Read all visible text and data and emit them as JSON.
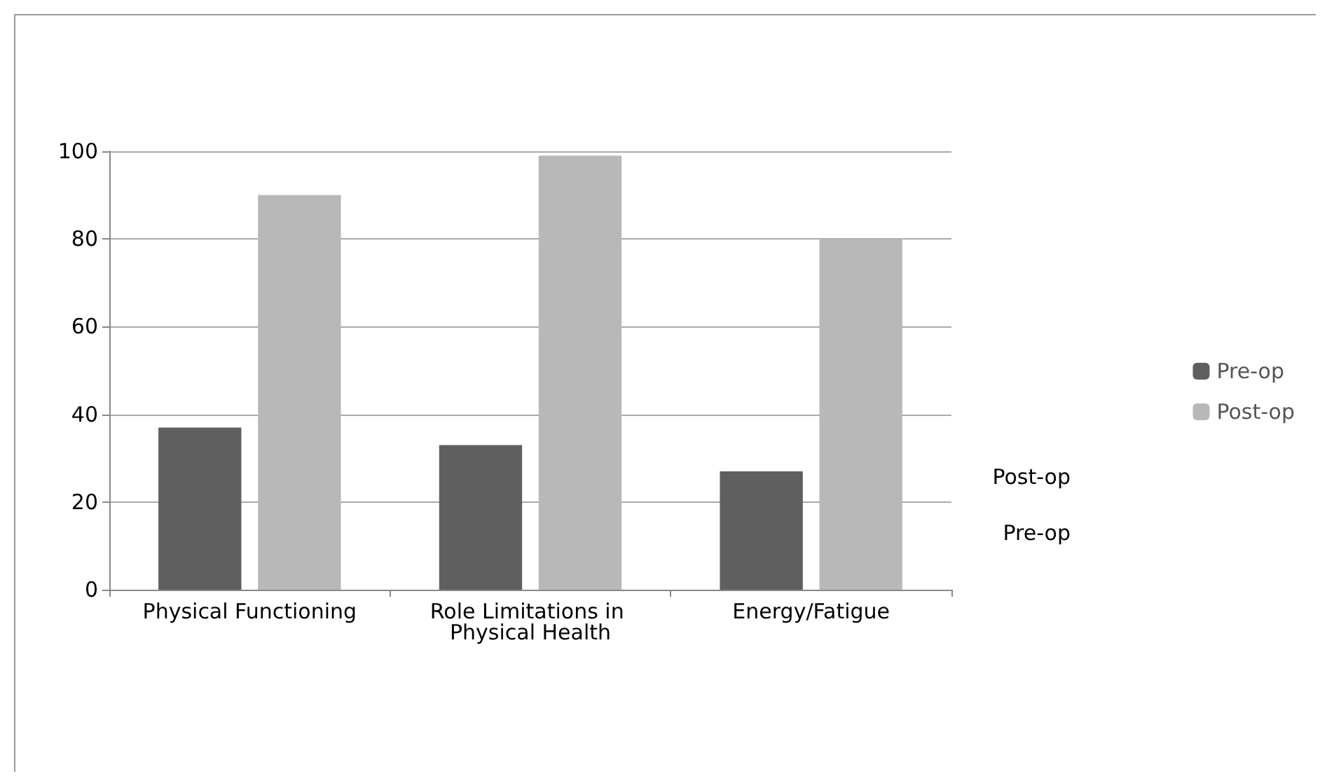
{
  "chart_data": {
    "type": "bar",
    "categories": [
      "Physical Functioning",
      "Role Limitations in Physical Health",
      "Energy/Fatigue"
    ],
    "series": [
      {
        "name": "Pre-op",
        "color": "#5f5f5f",
        "values": [
          37,
          33,
          27
        ]
      },
      {
        "name": "Post-op",
        "color": "#b8b8b8",
        "values": [
          90,
          99,
          80
        ]
      }
    ],
    "ylim": [
      0,
      100
    ],
    "yticks": [
      0,
      20,
      40,
      60,
      80,
      100
    ],
    "grid": "y",
    "legend": "right",
    "annotations": [
      "Post-op",
      "Pre-op"
    ]
  }
}
